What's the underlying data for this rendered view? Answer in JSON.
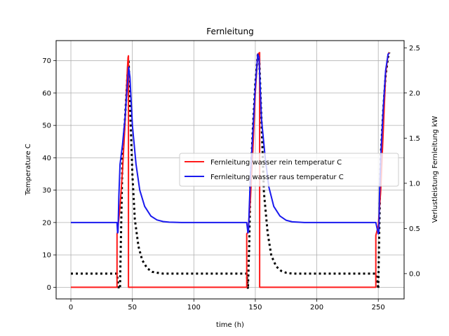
{
  "chart_data": {
    "type": "line",
    "title": "Fernleitung",
    "xlabel": "time (h)",
    "ylabel": "Temperature C",
    "y2label": "Verlustleistung Fernleitung kW",
    "xlim": [
      -12,
      271
    ],
    "ylim": [
      -3.6,
      76.2
    ],
    "y2lim": [
      -0.28,
      2.58
    ],
    "xticks": [
      0,
      50,
      100,
      150,
      200,
      250
    ],
    "yticks": [
      0,
      10,
      20,
      30,
      40,
      50,
      60,
      70
    ],
    "y2ticks": [
      0.0,
      0.5,
      1.0,
      1.5,
      2.0,
      2.5
    ],
    "grid": true,
    "legend_position": "center-right",
    "series": [
      {
        "name": "Fernleitung wasser rein temperatur C",
        "axis": "left",
        "color": "#ff1a1a",
        "style": "solid",
        "x": [
          0,
          37.5,
          37.5,
          38,
          40,
          42,
          44,
          46,
          46.5,
          46.8,
          46.8,
          143,
          143,
          144,
          146,
          148,
          150,
          152,
          153.5,
          153.5,
          248,
          248,
          250,
          252,
          254,
          256,
          258,
          259
        ],
        "y": [
          0,
          0,
          16.5,
          17,
          25,
          36,
          50,
          68,
          71,
          71.5,
          0,
          0,
          16.5,
          17,
          27,
          42,
          60,
          72,
          72.5,
          0,
          0,
          16,
          19,
          30,
          48,
          66,
          72,
          72.5
        ]
      },
      {
        "name": "Fernleitung wasser raus temperatur C",
        "axis": "left",
        "color": "#1a1aee",
        "style": "solid",
        "x": [
          0,
          37.5,
          38,
          38.3,
          39,
          40,
          42,
          44,
          46,
          47,
          48,
          50,
          53,
          56,
          60,
          65,
          70,
          75,
          80,
          90,
          143,
          144,
          144.5,
          145,
          146,
          148,
          150,
          152,
          153,
          155,
          158,
          161,
          165,
          170,
          175,
          180,
          190,
          248,
          250,
          250.5,
          251,
          252,
          254,
          256,
          258,
          259
        ],
        "y": [
          20,
          20,
          16.8,
          17,
          28,
          38,
          44,
          52,
          63,
          68,
          65,
          50,
          38,
          30,
          25,
          22,
          20.8,
          20.3,
          20.1,
          20,
          20,
          16.8,
          17.5,
          24,
          34,
          48,
          62,
          72,
          71,
          52,
          40,
          31,
          25,
          22,
          20.7,
          20.2,
          20,
          20,
          16.5,
          17.5,
          28,
          40,
          55,
          67,
          72,
          72.3
        ]
      },
      {
        "name": "",
        "axis": "right",
        "color": "#000000",
        "style": "dotted",
        "x": [
          0,
          37.5,
          38,
          39,
          40,
          41,
          42,
          44,
          46,
          47,
          48,
          50,
          52,
          55,
          58,
          62,
          66,
          70,
          75,
          80,
          90,
          143,
          143.5,
          144,
          145,
          146,
          148,
          150,
          152,
          153,
          155,
          157,
          160,
          163,
          167,
          171,
          175,
          180,
          190,
          248,
          249,
          250,
          251,
          252,
          254,
          256,
          258,
          259
        ],
        "y": [
          0,
          0,
          -0.07,
          -0.17,
          -0.15,
          0.6,
          1.3,
          1.7,
          2.2,
          2.35,
          1.9,
          1.1,
          0.6,
          0.3,
          0.15,
          0.06,
          0.02,
          0.01,
          0,
          0,
          0,
          0,
          -0.08,
          -0.17,
          0.3,
          1.0,
          1.6,
          2.1,
          2.42,
          2.45,
          1.7,
          0.9,
          0.45,
          0.2,
          0.08,
          0.03,
          0.01,
          0,
          0,
          0,
          -0.07,
          -0.17,
          0.6,
          1.3,
          1.8,
          2.2,
          2.4,
          2.45
        ]
      }
    ]
  }
}
